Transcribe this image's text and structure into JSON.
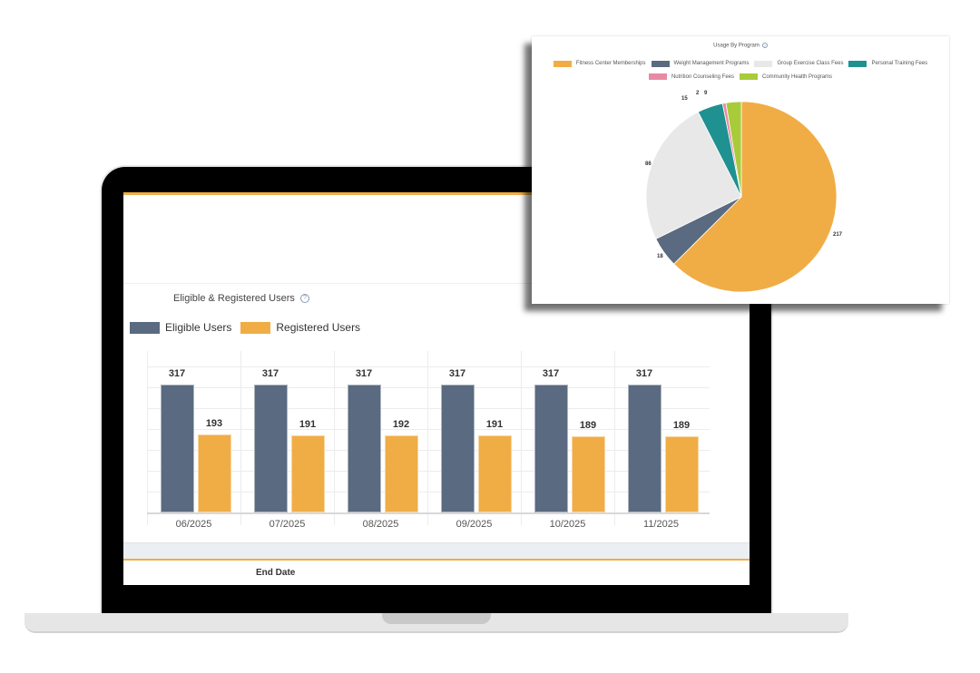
{
  "bar_panel": {
    "title": "Eligible & Registered Users",
    "help_glyph": "?",
    "legend": [
      {
        "label": "Eligible Users",
        "color": "#5a6a80"
      },
      {
        "label": "Registered Users",
        "color": "#f0ad45"
      }
    ]
  },
  "footer": {
    "end_date_label": "End Date"
  },
  "pie_panel": {
    "title": "Usage By Program",
    "help_glyph": "?",
    "legend": [
      {
        "label": "Fitness Center Memberships",
        "color": "#f0ad45"
      },
      {
        "label": "Weight Management Programs",
        "color": "#5a6a80"
      },
      {
        "label": "Group Exercise Class Fees",
        "color": "#e8e8e8"
      },
      {
        "label": "Personal Training Fees",
        "color": "#1f9190"
      },
      {
        "label": "Nutrition Counseling Fees",
        "color": "#e88aa4"
      },
      {
        "label": "Community Health Programs",
        "color": "#a8cb3a"
      }
    ]
  },
  "chart_data": [
    {
      "type": "bar",
      "title": "Eligible & Registered Users",
      "categories": [
        "06/2025",
        "07/2025",
        "08/2025",
        "09/2025",
        "10/2025",
        "11/2025"
      ],
      "series": [
        {
          "name": "Eligible Users",
          "color": "#5a6a80",
          "values": [
            317,
            317,
            317,
            317,
            317,
            317
          ]
        },
        {
          "name": "Registered Users",
          "color": "#f0ad45",
          "values": [
            193,
            191,
            192,
            191,
            189,
            189
          ]
        }
      ],
      "xlabel": "",
      "ylabel": "",
      "ylim": [
        0,
        350
      ],
      "grid": true,
      "legend_position": "top-left",
      "data_labels": true
    },
    {
      "type": "pie",
      "title": "Usage By Program",
      "categories": [
        "Fitness Center Memberships",
        "Weight Management Programs",
        "Group Exercise Class Fees",
        "Personal Training Fees",
        "Nutrition Counseling Fees",
        "Community Health Programs"
      ],
      "values": [
        217,
        18,
        86,
        15,
        2,
        9
      ],
      "colors": [
        "#f0ad45",
        "#5a6a80",
        "#e8e8e8",
        "#1f9190",
        "#e88aa4",
        "#a8cb3a"
      ],
      "legend_position": "top",
      "data_labels": true
    }
  ]
}
